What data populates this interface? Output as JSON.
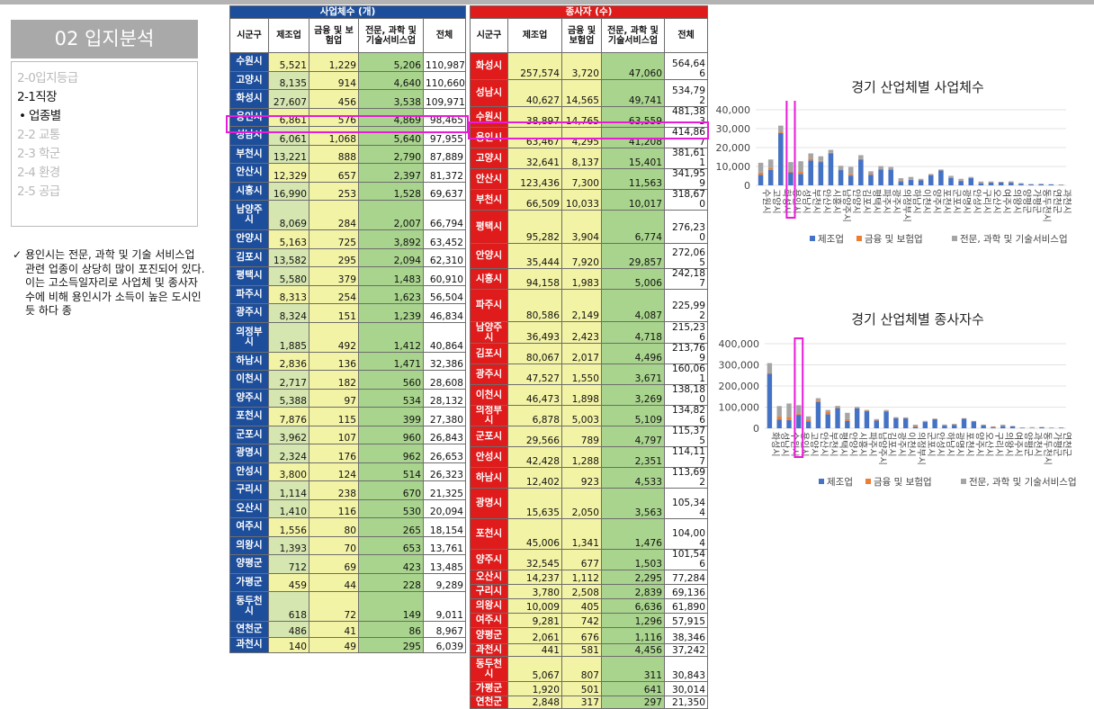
{
  "section_title": "02 입지분석",
  "menu": [
    "2-0입지등급",
    "2-1직장",
    "•  업종별",
    "2-2 교통",
    "2-3 학군",
    "2-4 환경",
    "2-5 공급"
  ],
  "note": "용인시는 전문, 과학 및 기술 서비스업 관련 업종이 상당히 많이 포진되어 있다. 이는 고소득일자리로 사업체 및 종사자수에 비해 용인시가 소득이 높은 도시인 듯 하다 종",
  "table1": {
    "title": "사업체수 (개)",
    "headers": [
      "시군구",
      "제조업",
      "금융 및 보험업",
      "전문, 과학 및 기술서비스업",
      "전체"
    ],
    "rows": [
      [
        "수원시",
        "5,521",
        "1,229",
        "5,206",
        "110,987"
      ],
      [
        "고양시",
        "8,135",
        "914",
        "4,640",
        "110,660"
      ],
      [
        "화성시",
        "27,607",
        "456",
        "3,538",
        "109,971"
      ],
      [
        "용인시",
        "6,861",
        "576",
        "4,869",
        "98,465"
      ],
      [
        "성남시",
        "6,061",
        "1,068",
        "5,640",
        "97,955"
      ],
      [
        "부천시",
        "13,221",
        "888",
        "2,790",
        "87,889"
      ],
      [
        "안산시",
        "12,329",
        "657",
        "2,397",
        "81,372"
      ],
      [
        "시흥시",
        "16,990",
        "253",
        "1,528",
        "69,637"
      ],
      [
        "남양주시",
        "8,069",
        "284",
        "2,007",
        "66,794"
      ],
      [
        "안양시",
        "5,163",
        "725",
        "3,892",
        "63,452"
      ],
      [
        "김포시",
        "13,582",
        "295",
        "2,094",
        "62,310"
      ],
      [
        "평택시",
        "5,580",
        "379",
        "1,483",
        "60,910"
      ],
      [
        "파주시",
        "8,313",
        "254",
        "1,623",
        "56,504"
      ],
      [
        "광주시",
        "8,324",
        "151",
        "1,239",
        "46,834"
      ],
      [
        "의정부시",
        "1,885",
        "492",
        "1,412",
        "40,864"
      ],
      [
        "하남시",
        "2,836",
        "136",
        "1,471",
        "32,386"
      ],
      [
        "이천시",
        "2,717",
        "182",
        "560",
        "28,608"
      ],
      [
        "양주시",
        "5,388",
        "97",
        "534",
        "28,132"
      ],
      [
        "포천시",
        "7,876",
        "115",
        "399",
        "27,380"
      ],
      [
        "군포시",
        "3,962",
        "107",
        "960",
        "26,843"
      ],
      [
        "광명시",
        "2,324",
        "176",
        "962",
        "26,653"
      ],
      [
        "안성시",
        "3,800",
        "124",
        "514",
        "26,323"
      ],
      [
        "구리시",
        "1,114",
        "238",
        "670",
        "21,325"
      ],
      [
        "오산시",
        "1,410",
        "116",
        "530",
        "20,094"
      ],
      [
        "여주시",
        "1,556",
        "80",
        "265",
        "18,154"
      ],
      [
        "의왕시",
        "1,393",
        "70",
        "653",
        "13,761"
      ],
      [
        "양평군",
        "712",
        "69",
        "423",
        "13,485"
      ],
      [
        "가평군",
        "459",
        "44",
        "228",
        "9,289"
      ],
      [
        "동두천시",
        "618",
        "72",
        "149",
        "9,011"
      ],
      [
        "연천군",
        "486",
        "41",
        "86",
        "8,967"
      ],
      [
        "과천시",
        "140",
        "49",
        "295",
        "6,039"
      ]
    ]
  },
  "table2": {
    "title": "종사자 (수)",
    "headers": [
      "시군구",
      "제조업",
      "금융 및 보험업",
      "전문, 과학 및 기술서비스업",
      "전체"
    ],
    "rows": [
      [
        "화성시",
        "257,574",
        "3,720",
        "47,060",
        "564,646"
      ],
      [
        "성남시",
        "40,627",
        "14,565",
        "49,741",
        "534,792"
      ],
      [
        "수원시",
        "38,897",
        "14,765",
        "63,559",
        "481,383"
      ],
      [
        "용인시",
        "63,467",
        "4,295",
        "41,208",
        "414,867"
      ],
      [
        "고양시",
        "32,641",
        "8,137",
        "15,401",
        "381,611"
      ],
      [
        "안산시",
        "123,436",
        "7,300",
        "11,563",
        "341,959"
      ],
      [
        "부천시",
        "66,509",
        "10,033",
        "10,017",
        "318,670"
      ],
      [
        "평택시",
        "95,282",
        "3,904",
        "6,774",
        "276,230"
      ],
      [
        "안양시",
        "35,444",
        "7,920",
        "29,857",
        "272,065"
      ],
      [
        "시흥시",
        "94,158",
        "1,983",
        "5,006",
        "242,187"
      ],
      [
        "파주시",
        "80,586",
        "2,149",
        "4,087",
        "225,992"
      ],
      [
        "남양주시",
        "36,493",
        "2,423",
        "4,718",
        "215,236"
      ],
      [
        "김포시",
        "80,067",
        "2,017",
        "4,496",
        "213,769"
      ],
      [
        "광주시",
        "47,527",
        "1,550",
        "3,671",
        "160,061"
      ],
      [
        "이천시",
        "46,473",
        "1,898",
        "3,269",
        "138,180"
      ],
      [
        "의정부시",
        "6,878",
        "5,003",
        "5,109",
        "134,826"
      ],
      [
        "군포시",
        "29,566",
        "789",
        "4,797",
        "115,375"
      ],
      [
        "안성시",
        "42,428",
        "1,288",
        "2,351",
        "114,117"
      ],
      [
        "하남시",
        "12,402",
        "923",
        "4,533",
        "113,692"
      ],
      [
        "광명시",
        "15,635",
        "2,050",
        "3,563",
        "105,344"
      ],
      [
        "포천시",
        "45,006",
        "1,341",
        "1,476",
        "104,004"
      ],
      [
        "양주시",
        "32,545",
        "677",
        "1,503",
        "101,546"
      ],
      [
        "오산시",
        "14,237",
        "1,112",
        "2,295",
        "77,284"
      ],
      [
        "구리시",
        "3,780",
        "2,508",
        "2,839",
        "69,136"
      ],
      [
        "의왕시",
        "10,009",
        "405",
        "6,636",
        "61,890"
      ],
      [
        "여주시",
        "9,281",
        "742",
        "1,296",
        "57,915"
      ],
      [
        "양평군",
        "2,061",
        "676",
        "1,116",
        "38,346"
      ],
      [
        "과천시",
        "441",
        "581",
        "4,456",
        "37,242"
      ],
      [
        "동두천시",
        "5,067",
        "807",
        "311",
        "30,843"
      ],
      [
        "가평군",
        "1,920",
        "501",
        "641",
        "30,014"
      ],
      [
        "연천군",
        "2,848",
        "317",
        "297",
        "21,350"
      ]
    ]
  },
  "chart_data": [
    {
      "type": "bar",
      "stacked": true,
      "title": "경기 산업체별 사업체수",
      "ylim": [
        0,
        40000
      ],
      "yticks": [
        "0",
        "10,000",
        "20,000",
        "30,000",
        "40,000"
      ],
      "categories": [
        "수원시",
        "고양시",
        "화성시",
        "용인시",
        "성남시",
        "부천시",
        "안산시",
        "시흥시",
        "남양주시",
        "안양시",
        "김포시",
        "평택시",
        "파주시",
        "광주시",
        "의정부시",
        "하남시",
        "이천시",
        "양주시",
        "포천시",
        "군포시",
        "광명시",
        "안성시",
        "구리시",
        "오산시",
        "여주시",
        "의왕시",
        "양평군",
        "가평군",
        "동두천시",
        "연천군",
        "과천시"
      ],
      "series": [
        {
          "name": "제조업",
          "color": "#4472c4",
          "values": [
            5521,
            8135,
            27607,
            6861,
            6061,
            13221,
            12329,
            16990,
            8069,
            5163,
            13582,
            5580,
            8313,
            8324,
            1885,
            2836,
            2717,
            5388,
            7876,
            3962,
            2324,
            3800,
            1114,
            1410,
            1556,
            1393,
            712,
            459,
            618,
            486,
            140
          ]
        },
        {
          "name": "금융 및 보험업",
          "color": "#ed7d31",
          "values": [
            1229,
            914,
            456,
            576,
            1068,
            888,
            657,
            253,
            284,
            725,
            295,
            379,
            254,
            151,
            492,
            136,
            182,
            97,
            115,
            107,
            176,
            124,
            238,
            116,
            80,
            70,
            69,
            44,
            72,
            41,
            49
          ]
        },
        {
          "name": "전문, 과학 및 기술서비스업",
          "color": "#a5a5a5",
          "values": [
            5206,
            4640,
            3538,
            4869,
            5640,
            2790,
            2397,
            1528,
            2007,
            3892,
            2094,
            1483,
            1623,
            1239,
            1412,
            1471,
            560,
            534,
            399,
            960,
            962,
            514,
            670,
            530,
            265,
            653,
            423,
            228,
            149,
            86,
            295
          ]
        }
      ],
      "legend": "bottom"
    },
    {
      "type": "bar",
      "stacked": true,
      "title": "경기 산업체별 종사자수",
      "ylim": [
        0,
        400000
      ],
      "yticks": [
        "0",
        "100,000",
        "200,000",
        "300,000",
        "400,000"
      ],
      "categories": [
        "화성시",
        "성남시",
        "수원시",
        "용인시",
        "고양시",
        "안산시",
        "부천시",
        "평택시",
        "안양시",
        "시흥시",
        "파주시",
        "남양주시",
        "김포시",
        "광주시",
        "이천시",
        "의정부시",
        "군포시",
        "안성시",
        "하남시",
        "광명시",
        "포천시",
        "양주시",
        "오산시",
        "구리시",
        "의왕시",
        "여주시",
        "양평군",
        "과천시",
        "동두천시",
        "가평군",
        "연천군"
      ],
      "series": [
        {
          "name": "제조업",
          "color": "#4472c4",
          "values": [
            257574,
            40627,
            38897,
            63467,
            32641,
            123436,
            66509,
            95282,
            35444,
            94158,
            80586,
            36493,
            80067,
            47527,
            46473,
            6878,
            29566,
            42428,
            12402,
            15635,
            45006,
            32545,
            14237,
            3780,
            10009,
            9281,
            2061,
            441,
            5067,
            1920,
            2848
          ]
        },
        {
          "name": "금융 및 보험업",
          "color": "#ed7d31",
          "values": [
            3720,
            14565,
            14765,
            4295,
            8137,
            7300,
            10033,
            3904,
            7920,
            1983,
            2149,
            2423,
            2017,
            1550,
            1898,
            5003,
            789,
            1288,
            923,
            2050,
            1341,
            677,
            1112,
            2508,
            405,
            742,
            676,
            581,
            807,
            501,
            317
          ]
        },
        {
          "name": "전문, 과학 및 기술서비스업",
          "color": "#a5a5a5",
          "values": [
            47060,
            49741,
            63559,
            41208,
            15401,
            11563,
            10017,
            6774,
            29857,
            5006,
            4087,
            4718,
            4496,
            3671,
            3269,
            5109,
            4797,
            2351,
            4533,
            3563,
            1476,
            1503,
            2295,
            2839,
            6636,
            1296,
            1116,
            4456,
            311,
            641,
            297
          ]
        }
      ],
      "legend": "bottom"
    }
  ]
}
